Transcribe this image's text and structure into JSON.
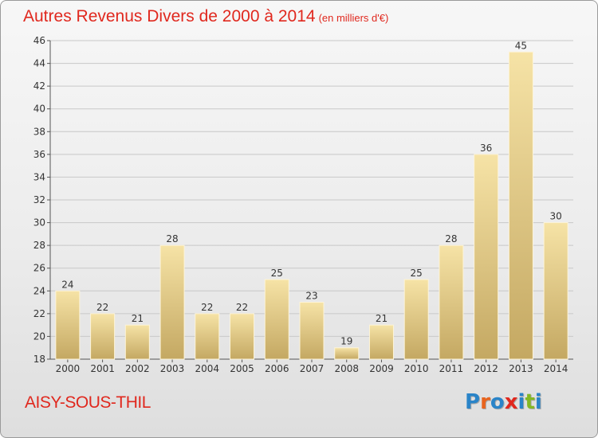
{
  "title": "Autres Revenus Divers de 2000 à 2014",
  "subtitle": "(en milliers d'€)",
  "city": "AISY-SOUS-THIL",
  "logo": {
    "letters": [
      "P",
      "r",
      "o",
      "x",
      "i",
      "t",
      "i"
    ],
    "colors": [
      "#2a84c8",
      "#e8641e",
      "#2a84c8",
      "#e0281e",
      "#2a84c8",
      "#84b824",
      "#2a84c8"
    ]
  },
  "colors": {
    "title": "#e0281e",
    "bar_light": "#f5e0a0",
    "bar_dark": "#c2a65e",
    "grid": "#c8c8c8"
  },
  "chart_data": {
    "type": "bar",
    "title": "Autres Revenus Divers de 2000 à 2014",
    "subtitle": "(en milliers d'€)",
    "categories": [
      "2000",
      "2001",
      "2002",
      "2003",
      "2004",
      "2005",
      "2006",
      "2007",
      "2008",
      "2009",
      "2010",
      "2011",
      "2012",
      "2013",
      "2014"
    ],
    "values": [
      24,
      22,
      21,
      28,
      22,
      22,
      25,
      23,
      19,
      21,
      25,
      28,
      36,
      45,
      30
    ],
    "ylim": [
      18,
      46
    ],
    "yticks": [
      18,
      20,
      22,
      24,
      26,
      28,
      30,
      32,
      34,
      36,
      38,
      40,
      42,
      44,
      46
    ],
    "grid": true
  }
}
